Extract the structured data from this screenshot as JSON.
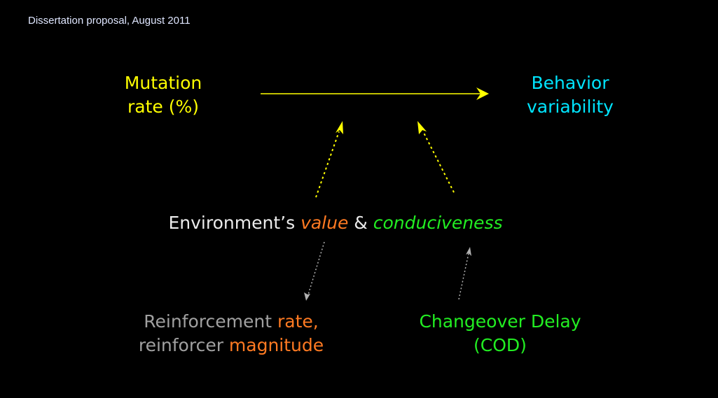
{
  "header": "Dissertation proposal, August 2011",
  "colors": {
    "background": "#000000",
    "mutation": "#ffff00",
    "behavior": "#00e5ff",
    "value": "#ff7a22",
    "conduciveness": "#22ee22",
    "grey": "#a0a0a0"
  },
  "nodes": {
    "mutation": {
      "line1": "Mutation",
      "line2": "rate (%)"
    },
    "behavior": {
      "line1": "Behavior",
      "line2": "variability"
    },
    "environment": {
      "prefix": "Environment’s ",
      "value": "value",
      "amp": " & ",
      "conduciveness": "conduciveness"
    },
    "reinforcement": {
      "part1": "Reinforcement ",
      "part2": "rate,",
      "part3": "reinforcer ",
      "part4": "magnitude"
    },
    "cod": {
      "line1": "Changeover Delay",
      "line2": "(COD)"
    }
  },
  "edges": [
    {
      "from": "mutation",
      "to": "behavior",
      "style": "solid",
      "color": "yellow"
    },
    {
      "from": "environment",
      "to": "mutation-behavior-arrow",
      "style": "dotted",
      "color": "yellow"
    },
    {
      "from": "environment",
      "to": "mutation-behavior-arrow",
      "style": "dotted",
      "color": "yellow"
    },
    {
      "from": "environment-value",
      "to": "reinforcement",
      "style": "dotted",
      "color": "grey"
    },
    {
      "from": "cod",
      "to": "environment-conduciveness",
      "style": "dotted",
      "color": "grey"
    }
  ]
}
